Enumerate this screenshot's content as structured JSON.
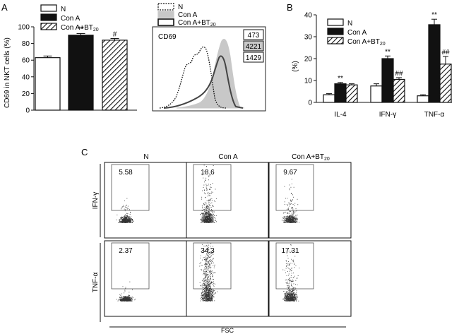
{
  "colors": {
    "black": "#111111",
    "grey": "#c8c8c8",
    "dark_line": "#444444",
    "box": "#ffffff"
  },
  "chart_data": [
    {
      "panel": "A",
      "type": "bar",
      "ylabel": "CD69 in NKT cells (%)",
      "ylim": [
        0,
        100
      ],
      "yticks": [
        "0",
        "20",
        "40",
        "60",
        "80",
        "100"
      ],
      "legend": [
        "N",
        "Con A",
        "Con A+BT20"
      ],
      "categories": [
        "N",
        "Con A",
        "Con A+BT20"
      ],
      "values": [
        63,
        90,
        84
      ],
      "errors": [
        2,
        2,
        2
      ],
      "fills": [
        "white",
        "black",
        "hatch"
      ],
      "annotations": [
        "",
        "**",
        "#"
      ]
    },
    {
      "panel": "A-histogram",
      "type": "line",
      "title": "CD69",
      "legend": [
        "N",
        "Con A",
        "Con A+BT20"
      ],
      "mfi_values": [
        "473",
        "4221",
        "1429"
      ]
    },
    {
      "panel": "B",
      "type": "bar",
      "ylabel": "(%)",
      "ylim": [
        0,
        40
      ],
      "yticks": [
        "0",
        "10",
        "20",
        "30",
        "40"
      ],
      "legend": [
        "N",
        "Con A",
        "Con A+BT20"
      ],
      "categories": [
        "IL-4",
        "IFN-γ",
        "TNF-α"
      ],
      "series": [
        {
          "name": "N",
          "values": [
            3.5,
            7.5,
            3
          ],
          "errors": [
            0.5,
            1,
            0.5
          ],
          "fill": "white"
        },
        {
          "name": "Con A",
          "values": [
            8.5,
            20,
            35.5
          ],
          "errors": [
            0.6,
            1.2,
            2.5
          ],
          "fill": "black"
        },
        {
          "name": "Con A+BT20",
          "values": [
            8,
            10.5,
            17.5
          ],
          "errors": [
            0.5,
            0.8,
            3.5
          ],
          "fill": "hatch"
        }
      ],
      "annotations": [
        {
          "category": "IL-4",
          "series": "Con A",
          "text": "**"
        },
        {
          "category": "IFN-γ",
          "series": "Con A",
          "text": "**"
        },
        {
          "category": "IFN-γ",
          "series": "Con A+BT20",
          "text": "##"
        },
        {
          "category": "TNF-α",
          "series": "Con A",
          "text": "**"
        },
        {
          "category": "TNF-α",
          "series": "Con A+BT20",
          "text": "##"
        }
      ]
    },
    {
      "panel": "C",
      "type": "scatter",
      "columns": [
        "N",
        "Con A",
        "Con A+BT20"
      ],
      "rows": [
        "IFN-γ",
        "TNF-α"
      ],
      "gate_percent": [
        [
          "5.58",
          "18.6",
          "9.67"
        ],
        [
          "2.37",
          "34.3",
          "17.31"
        ]
      ],
      "xlabel": "FSC"
    }
  ],
  "labels": {
    "panel_a": "A",
    "panel_b": "B",
    "panel_c": "C",
    "bt_base": "Con A+BT",
    "bt_sub": "20"
  }
}
